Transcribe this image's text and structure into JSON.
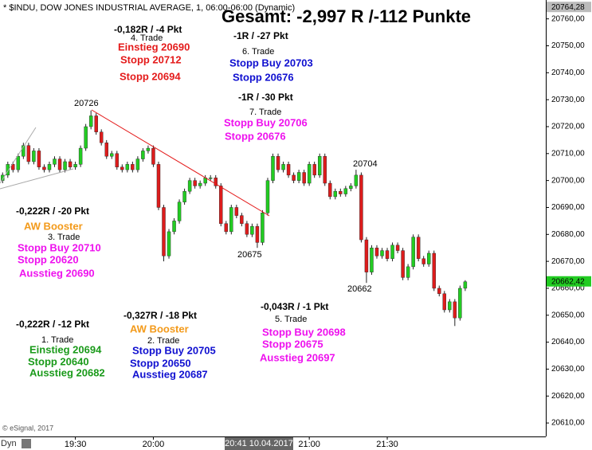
{
  "chart_data": {
    "type": "candlestick",
    "title": "Gesamt: -2,997 R /-112 Punkte",
    "subtitle": "* $INDU, DOW JONES INDUSTRIAL AVERAGE, 1, 06:00-06:00 (Dynamic)",
    "x": [
      "19:02",
      "19:04",
      "19:06",
      "19:08",
      "19:10",
      "19:12",
      "19:14",
      "19:16",
      "19:18",
      "19:20",
      "19:22",
      "19:24",
      "19:26",
      "19:28",
      "19:30",
      "19:32",
      "19:34",
      "19:36",
      "19:38",
      "19:40",
      "19:42",
      "19:44",
      "19:46",
      "19:48",
      "19:50",
      "19:52",
      "19:54",
      "19:56",
      "19:58",
      "20:00",
      "20:02",
      "20:04",
      "20:06",
      "20:08",
      "20:10",
      "20:12",
      "20:14",
      "20:16",
      "20:18",
      "20:20",
      "20:22",
      "20:24",
      "20:26",
      "20:28",
      "20:30",
      "20:32",
      "20:34",
      "20:36",
      "20:38",
      "20:40",
      "20:42",
      "20:44",
      "20:46",
      "20:48",
      "20:50",
      "20:52",
      "20:54",
      "20:56",
      "20:58",
      "21:00",
      "21:02",
      "21:04",
      "21:06",
      "21:08",
      "21:10",
      "21:12",
      "21:14",
      "21:16",
      "21:18",
      "21:20",
      "21:22",
      "21:24",
      "21:26",
      "21:28",
      "21:30",
      "21:32",
      "21:34",
      "21:36",
      "21:38",
      "21:40",
      "21:42",
      "21:44",
      "21:46",
      "21:48",
      "21:50",
      "21:52",
      "21:54",
      "21:56",
      "21:58",
      "22:00"
    ],
    "open": [
      20700,
      20702,
      20706,
      20704,
      20709,
      20713,
      20707,
      20711,
      20705,
      20704,
      20706,
      20708,
      20704,
      20707,
      20705,
      20706,
      20712,
      20720,
      20724,
      20718,
      20714,
      20709,
      20710,
      20705,
      20704,
      20706,
      20704,
      20708,
      20711,
      20712,
      20706,
      20690,
      20672,
      20681,
      20685,
      20692,
      20696,
      20700,
      20698,
      20699,
      20701,
      20701,
      20698,
      20684,
      20681,
      20690,
      20687,
      20684,
      20680,
      20683,
      20677,
      20688,
      20700,
      20709,
      20704,
      20706,
      20702,
      20700,
      20703,
      20699,
      20706,
      20702,
      20709,
      20699,
      20694,
      20696,
      20695,
      20697,
      20698,
      20702,
      20678,
      20666,
      20675,
      20672,
      20674,
      20671,
      20676,
      20674,
      20664,
      20668,
      20679,
      20671,
      20669,
      20673,
      20660,
      20658,
      20652,
      20655,
      20649,
      20660
    ],
    "high": [
      20703,
      20707,
      20707,
      20710,
      20714,
      20714,
      20712,
      20712,
      20706,
      20707,
      20709,
      20709,
      20708,
      20708,
      20707,
      20713,
      20721,
      20726,
      20725,
      20719,
      20715,
      20711,
      20711,
      20706,
      20707,
      20707,
      20709,
      20712,
      20713,
      20713,
      20707,
      20691,
      20682,
      20686,
      20693,
      20697,
      20701,
      20701,
      20700,
      20702,
      20702,
      20702,
      20699,
      20685,
      20691,
      20691,
      20688,
      20685,
      20684,
      20684,
      20689,
      20701,
      20710,
      20710,
      20707,
      20707,
      20703,
      20704,
      20704,
      20707,
      20707,
      20710,
      20710,
      20700,
      20697,
      20697,
      20698,
      20699,
      20704,
      20703,
      20679,
      20676,
      20676,
      20675,
      20675,
      20677,
      20677,
      20675,
      20669,
      20680,
      20680,
      20672,
      20674,
      20674,
      20661,
      20659,
      20656,
      20656,
      20661,
      20663
    ],
    "low": [
      20699,
      20701,
      20703,
      20703,
      20708,
      20706,
      20706,
      20704,
      20703,
      20703,
      20705,
      20703,
      20703,
      20704,
      20704,
      20705,
      20711,
      20719,
      20717,
      20713,
      20708,
      20708,
      20704,
      20703,
      20703,
      20703,
      20703,
      20707,
      20710,
      20705,
      20689,
      20670,
      20671,
      20680,
      20684,
      20691,
      20695,
      20697,
      20697,
      20698,
      20700,
      20697,
      20683,
      20680,
      20680,
      20686,
      20683,
      20679,
      20679,
      20675,
      20676,
      20687,
      20699,
      20703,
      20703,
      20701,
      20699,
      20699,
      20698,
      20698,
      20701,
      20701,
      20698,
      20693,
      20693,
      20694,
      20694,
      20696,
      20697,
      20677,
      20662,
      20665,
      20671,
      20671,
      20670,
      20670,
      20673,
      20663,
      20663,
      20667,
      20670,
      20668,
      20668,
      20659,
      20657,
      20651,
      20651,
      20646,
      20648,
      20659
    ],
    "close": [
      20702,
      20706,
      20704,
      20709,
      20713,
      20707,
      20711,
      20705,
      20704,
      20706,
      20708,
      20704,
      20707,
      20705,
      20706,
      20712,
      20720,
      20724,
      20718,
      20714,
      20709,
      20710,
      20705,
      20704,
      20706,
      20704,
      20708,
      20711,
      20712,
      20706,
      20690,
      20672,
      20681,
      20685,
      20692,
      20696,
      20700,
      20698,
      20699,
      20701,
      20701,
      20698,
      20684,
      20681,
      20690,
      20687,
      20684,
      20680,
      20683,
      20677,
      20688,
      20700,
      20709,
      20704,
      20706,
      20702,
      20700,
      20703,
      20699,
      20706,
      20702,
      20709,
      20699,
      20694,
      20696,
      20695,
      20697,
      20698,
      20702,
      20678,
      20666,
      20675,
      20672,
      20674,
      20671,
      20676,
      20674,
      20664,
      20668,
      20679,
      20671,
      20669,
      20673,
      20660,
      20658,
      20652,
      20655,
      20649,
      20660,
      20662.42
    ],
    "up_color": "#22cc22",
    "down_color": "#dd1c1c",
    "xlim": [
      "19:01",
      "22:31"
    ],
    "xticks": [
      "19:30",
      "20:00",
      "21:00",
      "21:30"
    ],
    "ylim": [
      20605,
      20767
    ],
    "yticks": [
      {
        "value": 20610,
        "label": "20610,00"
      },
      {
        "value": 20620,
        "label": "20620,00"
      },
      {
        "value": 20630,
        "label": "20630,00"
      },
      {
        "value": 20640,
        "label": "20640,00"
      },
      {
        "value": 20650,
        "label": "20650,00"
      },
      {
        "value": 20660,
        "label": "20660,00"
      },
      {
        "value": 20670,
        "label": "20670,00"
      },
      {
        "value": 20680,
        "label": "20680,00"
      },
      {
        "value": 20690,
        "label": "20690,00"
      },
      {
        "value": 20700,
        "label": "20700,00"
      },
      {
        "value": 20710,
        "label": "20710,00"
      },
      {
        "value": 20720,
        "label": "20720,00"
      },
      {
        "value": 20730,
        "label": "20730,00"
      },
      {
        "value": 20740,
        "label": "20740,00"
      },
      {
        "value": 20750,
        "label": "20750,00"
      },
      {
        "value": 20760,
        "label": "20760,00"
      }
    ],
    "high_marker": {
      "value": 20764.28,
      "label": "20764,28"
    },
    "last_price": {
      "value": 20662.42,
      "label": "20662,42"
    },
    "crosshair_label": "20:41 10.04.2017"
  },
  "trades": [
    {
      "result": "-0,222R / -12 Pkt",
      "label": "1. Trade",
      "lines": [
        "Einstieg 20694",
        "Stopp 20640",
        "Ausstieg 20682"
      ]
    },
    {
      "result": "-0,327R / -18 Pkt",
      "note": "AW Booster",
      "label": "2. Trade",
      "lines": [
        "Stopp Buy 20705",
        "Stopp 20650",
        "Ausstieg 20687"
      ]
    },
    {
      "result": "-0,222R / -20 Pkt",
      "note": "AW Booster",
      "label": "3. Trade",
      "lines": [
        "Stopp Buy 20710",
        "Stopp 20620",
        "Ausstieg 20690"
      ]
    },
    {
      "result": "-0,182R / -4 Pkt",
      "label": "4. Trade",
      "lines": [
        "Einstieg 20690",
        "Stopp 20712",
        "Stopp 20694"
      ]
    },
    {
      "result": "-0,043R / -1 Pkt",
      "label": "5. Trade",
      "lines": [
        "Stopp Buy 20698",
        "Stopp 20675",
        "Ausstieg 20697"
      ]
    },
    {
      "result": "-1R / -27 Pkt",
      "label": "6. Trade",
      "lines": [
        "Stopp Buy 20703",
        "Stopp 20676"
      ]
    },
    {
      "result": "-1R / -30 Pkt",
      "label": "7. Trade",
      "lines": [
        "Stopp Buy 20706",
        "Stopp 20676"
      ]
    }
  ],
  "price_labels": [
    "20726",
    "20704",
    "20675",
    "20662"
  ],
  "footer": {
    "copyright": "© eSignal, 2017",
    "mode": "Dyn"
  }
}
